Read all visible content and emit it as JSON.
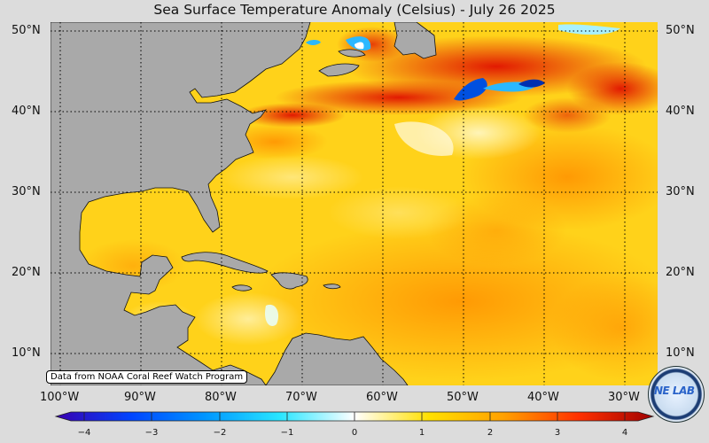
{
  "title": "Sea Surface Temperature Anomaly (Celsius) - July 26 2025",
  "lat_labels": [
    "50°N",
    "40°N",
    "30°N",
    "20°N",
    "10°N"
  ],
  "lon_labels": [
    "100°W",
    "90°W",
    "80°W",
    "70°W",
    "60°W",
    "50°W",
    "40°W",
    "30°W"
  ],
  "credit": "Data from NOAA Coral Reef Watch Program",
  "logo_text": "NE LAB",
  "colorbar": {
    "range": [
      -4,
      4
    ],
    "ticks": [
      "−4",
      "−3",
      "−2",
      "−1",
      "0",
      "1",
      "2",
      "3",
      "4"
    ],
    "colors": [
      "#3a00b0",
      "#0044ff",
      "#0096ff",
      "#28e6ff",
      "#ffffff",
      "#ffe000",
      "#ffa000",
      "#ff3000",
      "#a00000"
    ]
  },
  "colors": {
    "land": "#a9a9a9",
    "background": "#dcdcdc"
  }
}
